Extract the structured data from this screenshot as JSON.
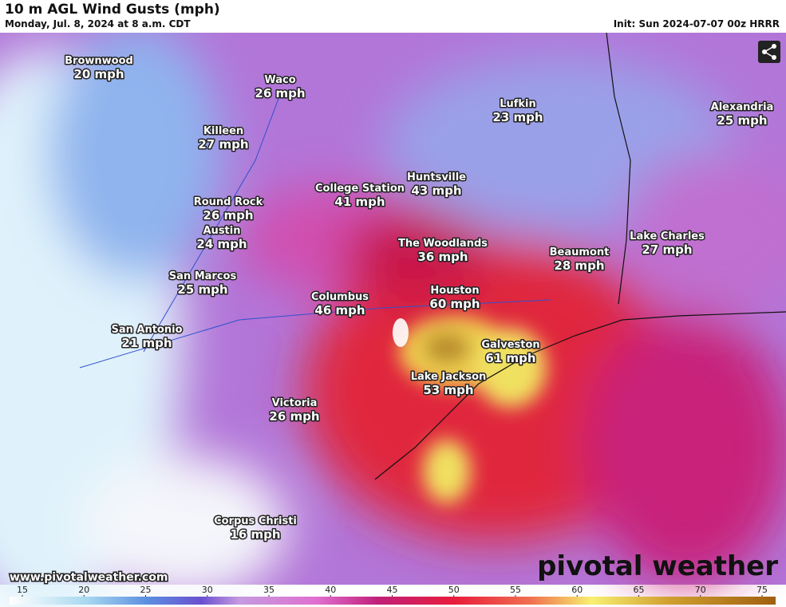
{
  "header": {
    "title": "10 m AGL Wind Gusts (mph)",
    "subtitle": "Monday, Jul. 8, 2024 at 8 a.m. CDT",
    "init": "Init: Sun 2024-07-07 00z HRRR"
  },
  "cities": [
    {
      "name": "Brownwood",
      "gust": "20 mph"
    },
    {
      "name": "Waco",
      "gust": "26 mph"
    },
    {
      "name": "Killeen",
      "gust": "27 mph"
    },
    {
      "name": "Lufkin",
      "gust": "23 mph"
    },
    {
      "name": "Alexandria",
      "gust": "25 mph"
    },
    {
      "name": "College Station",
      "gust": "41 mph"
    },
    {
      "name": "Huntsville",
      "gust": "43 mph"
    },
    {
      "name": "Round Rock",
      "gust": "26 mph"
    },
    {
      "name": "Austin",
      "gust": "24 mph"
    },
    {
      "name": "The Woodlands",
      "gust": "36 mph"
    },
    {
      "name": "Beaumont",
      "gust": "28 mph"
    },
    {
      "name": "Lake Charles",
      "gust": "27 mph"
    },
    {
      "name": "San Marcos",
      "gust": "25 mph"
    },
    {
      "name": "Houston",
      "gust": "60 mph"
    },
    {
      "name": "Columbus",
      "gust": "46 mph"
    },
    {
      "name": "San Antonio",
      "gust": "21 mph"
    },
    {
      "name": "Galveston",
      "gust": "61 mph"
    },
    {
      "name": "Lake Jackson",
      "gust": "53 mph"
    },
    {
      "name": "Victoria",
      "gust": "26 mph"
    },
    {
      "name": "Corpus Christi",
      "gust": "16 mph"
    }
  ],
  "footer": {
    "url": "www.pivotalweather.com",
    "logo": "pivotal weather"
  },
  "colorbar": {
    "ticks": [
      15,
      20,
      25,
      30,
      35,
      40,
      45,
      50,
      55,
      60,
      65,
      70,
      75
    ]
  }
}
